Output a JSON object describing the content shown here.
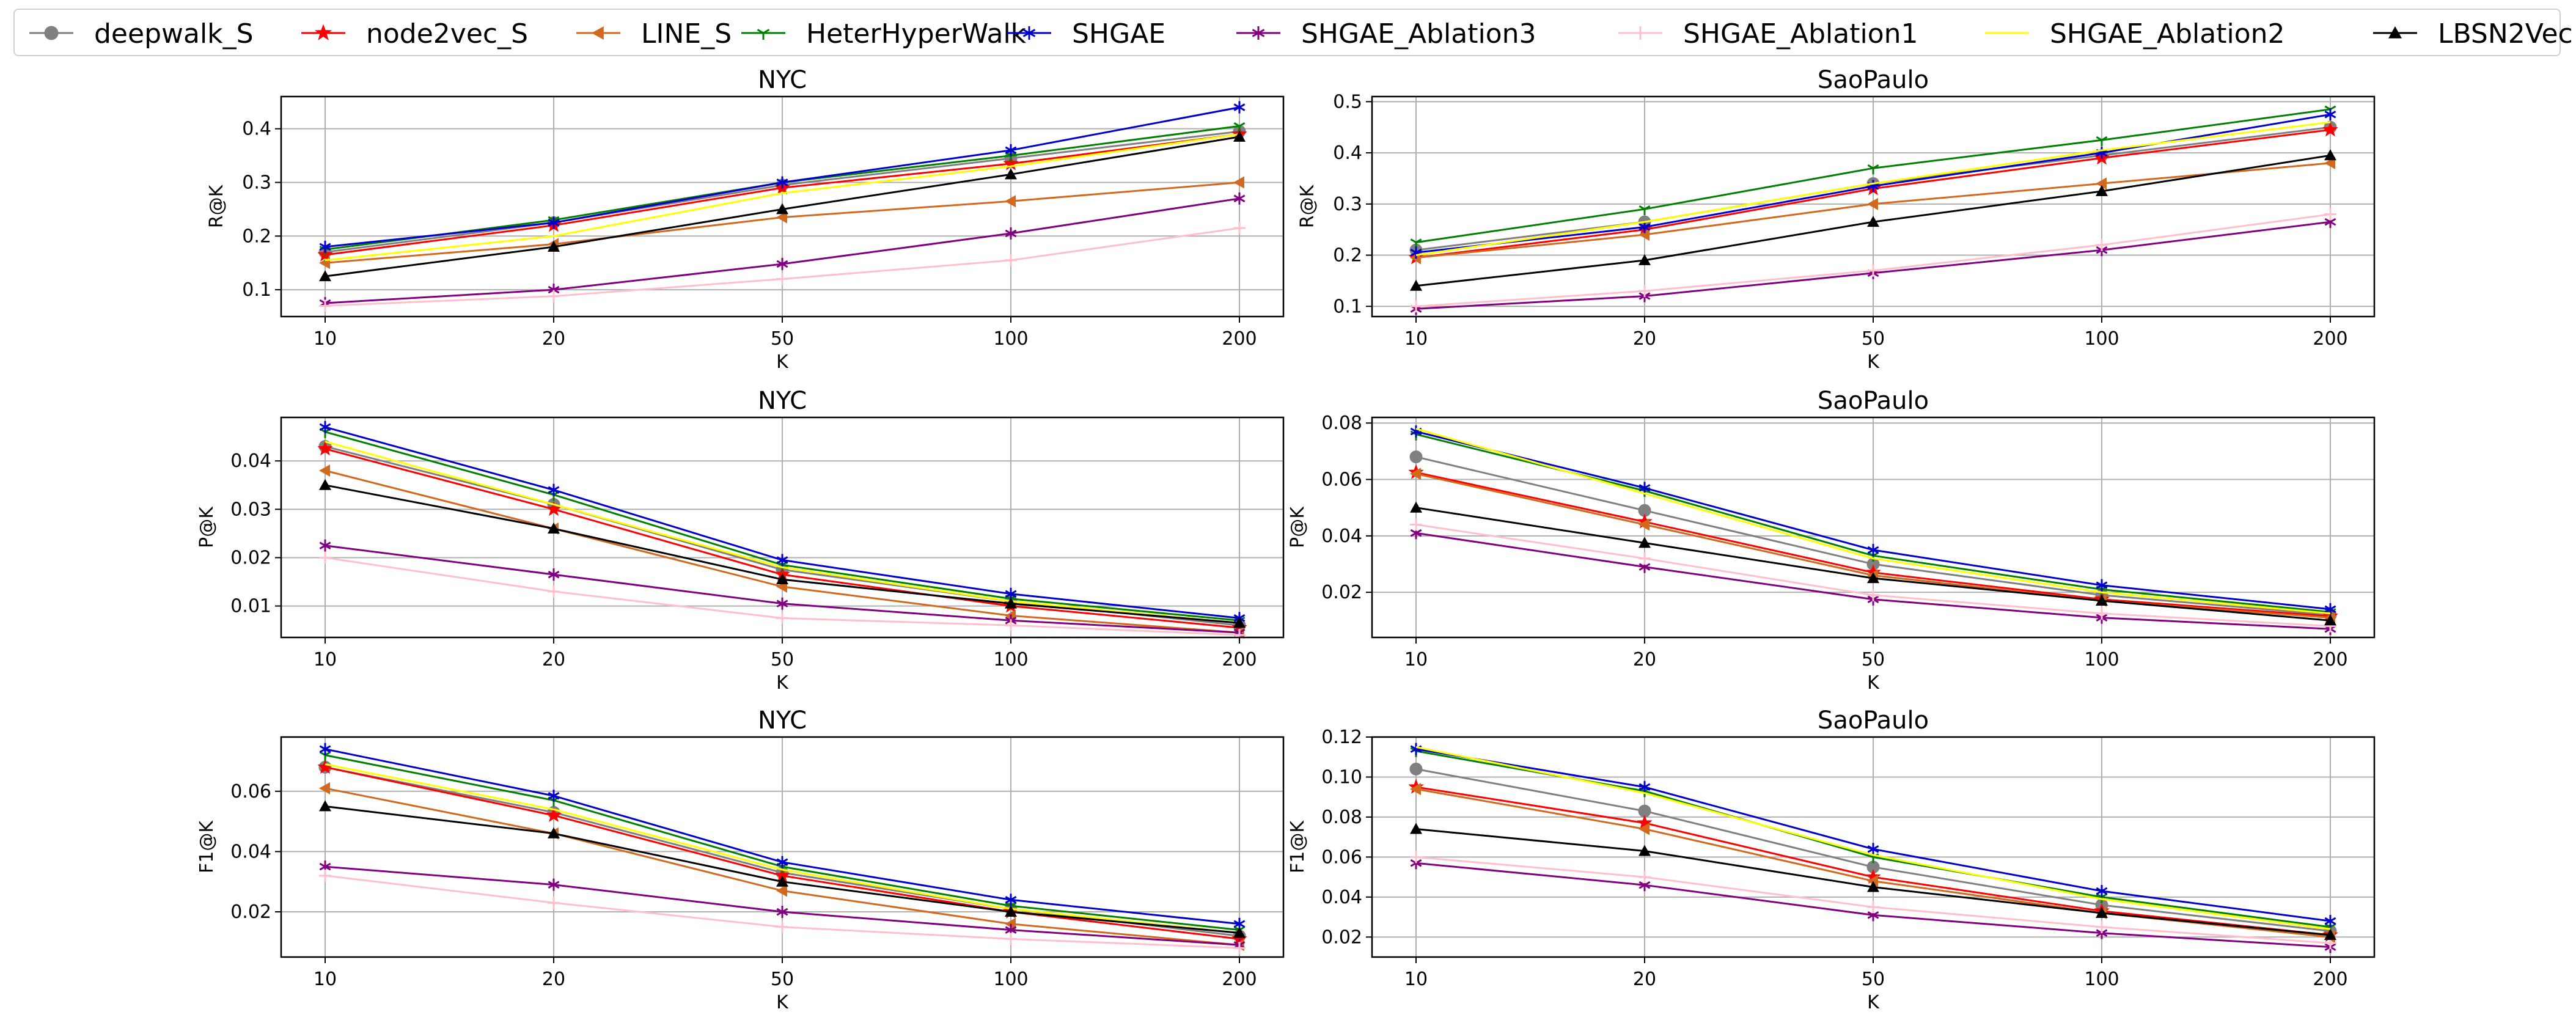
{
  "chart_data": [
    {
      "type": "line",
      "title": "NYC",
      "xlabel": "K",
      "ylabel": "R@K",
      "categories": [
        "10",
        "20",
        "50",
        "100",
        "200"
      ],
      "ylim": [
        0.05,
        0.46
      ],
      "yticks": [
        0.1,
        0.2,
        0.3,
        0.4
      ],
      "yticklabels": [
        "0.1",
        "0.2",
        "0.3",
        "0.4"
      ],
      "grid": true,
      "series": [
        {
          "name": "deepwalk_S",
          "values": [
            0.17,
            0.225,
            0.295,
            0.345,
            0.395
          ]
        },
        {
          "name": "node2vec_S",
          "values": [
            0.165,
            0.22,
            0.29,
            0.335,
            0.39
          ]
        },
        {
          "name": "LINE_S",
          "values": [
            0.15,
            0.185,
            0.235,
            0.265,
            0.3
          ]
        },
        {
          "name": "HeterHyperWalk",
          "values": [
            0.175,
            0.23,
            0.3,
            0.35,
            0.405
          ]
        },
        {
          "name": "SHGAE",
          "values": [
            0.18,
            0.225,
            0.3,
            0.36,
            0.44
          ]
        },
        {
          "name": "SHGAE_Ablation3",
          "values": [
            0.075,
            0.1,
            0.148,
            0.205,
            0.27
          ]
        },
        {
          "name": "SHGAE_Ablation1",
          "values": [
            0.07,
            0.088,
            0.12,
            0.155,
            0.215
          ]
        },
        {
          "name": "SHGAE_Ablation2",
          "values": [
            0.155,
            0.2,
            0.28,
            0.33,
            0.39
          ]
        },
        {
          "name": "LBSN2Vec",
          "values": [
            0.125,
            0.18,
            0.25,
            0.315,
            0.385
          ]
        }
      ]
    },
    {
      "type": "line",
      "title": "SaoPaulo",
      "xlabel": "K",
      "ylabel": "R@K",
      "categories": [
        "10",
        "20",
        "50",
        "100",
        "200"
      ],
      "ylim": [
        0.08,
        0.51
      ],
      "yticks": [
        0.1,
        0.2,
        0.3,
        0.4,
        0.5
      ],
      "yticklabels": [
        "0.1",
        "0.2",
        "0.3",
        "0.4",
        "0.5"
      ],
      "grid": true,
      "series": [
        {
          "name": "deepwalk_S",
          "values": [
            0.21,
            0.265,
            0.34,
            0.395,
            0.45
          ]
        },
        {
          "name": "node2vec_S",
          "values": [
            0.195,
            0.25,
            0.33,
            0.39,
            0.445
          ]
        },
        {
          "name": "LINE_S",
          "values": [
            0.195,
            0.24,
            0.3,
            0.34,
            0.38
          ]
        },
        {
          "name": "HeterHyperWalk",
          "values": [
            0.225,
            0.29,
            0.37,
            0.425,
            0.485
          ]
        },
        {
          "name": "SHGAE",
          "values": [
            0.205,
            0.255,
            0.335,
            0.4,
            0.475
          ]
        },
        {
          "name": "SHGAE_Ablation3",
          "values": [
            0.095,
            0.12,
            0.165,
            0.21,
            0.265
          ]
        },
        {
          "name": "SHGAE_Ablation1",
          "values": [
            0.1,
            0.13,
            0.17,
            0.22,
            0.28
          ]
        },
        {
          "name": "SHGAE_Ablation2",
          "values": [
            0.2,
            0.265,
            0.34,
            0.405,
            0.46
          ]
        },
        {
          "name": "LBSN2Vec",
          "values": [
            0.14,
            0.19,
            0.265,
            0.325,
            0.395
          ]
        }
      ]
    },
    {
      "type": "line",
      "title": "NYC",
      "xlabel": "K",
      "ylabel": "P@K",
      "categories": [
        "10",
        "20",
        "50",
        "100",
        "200"
      ],
      "ylim": [
        0.0035,
        0.049
      ],
      "yticks": [
        0.01,
        0.02,
        0.03,
        0.04
      ],
      "yticklabels": [
        "0.01",
        "0.02",
        "0.03",
        "0.04"
      ],
      "grid": true,
      "series": [
        {
          "name": "deepwalk_S",
          "values": [
            0.043,
            0.031,
            0.0175,
            0.011,
            0.006
          ]
        },
        {
          "name": "node2vec_S",
          "values": [
            0.0425,
            0.03,
            0.0165,
            0.01,
            0.0055
          ]
        },
        {
          "name": "LINE_S",
          "values": [
            0.038,
            0.026,
            0.014,
            0.008,
            0.0045
          ]
        },
        {
          "name": "HeterHyperWalk",
          "values": [
            0.046,
            0.033,
            0.0185,
            0.0115,
            0.007
          ]
        },
        {
          "name": "SHGAE",
          "values": [
            0.047,
            0.034,
            0.0195,
            0.0125,
            0.0075
          ]
        },
        {
          "name": "SHGAE_Ablation3",
          "values": [
            0.0225,
            0.0165,
            0.0105,
            0.007,
            0.0045
          ]
        },
        {
          "name": "SHGAE_Ablation1",
          "values": [
            0.02,
            0.013,
            0.0075,
            0.006,
            0.004
          ]
        },
        {
          "name": "SHGAE_Ablation2",
          "values": [
            0.044,
            0.031,
            0.018,
            0.011,
            0.0065
          ]
        },
        {
          "name": "LBSN2Vec",
          "values": [
            0.035,
            0.026,
            0.0155,
            0.0105,
            0.0065
          ]
        }
      ]
    },
    {
      "type": "line",
      "title": "SaoPaulo",
      "xlabel": "K",
      "ylabel": "P@K",
      "categories": [
        "10",
        "20",
        "50",
        "100",
        "200"
      ],
      "ylim": [
        0.004,
        0.082
      ],
      "yticks": [
        0.02,
        0.04,
        0.06,
        0.08
      ],
      "yticklabels": [
        "0.02",
        "0.04",
        "0.06",
        "0.08"
      ],
      "grid": true,
      "series": [
        {
          "name": "deepwalk_S",
          "values": [
            0.068,
            0.049,
            0.03,
            0.019,
            0.012
          ]
        },
        {
          "name": "node2vec_S",
          "values": [
            0.0625,
            0.045,
            0.027,
            0.0175,
            0.0115
          ]
        },
        {
          "name": "LINE_S",
          "values": [
            0.062,
            0.044,
            0.026,
            0.017,
            0.011
          ]
        },
        {
          "name": "HeterHyperWalk",
          "values": [
            0.076,
            0.056,
            0.033,
            0.021,
            0.013
          ]
        },
        {
          "name": "SHGAE",
          "values": [
            0.077,
            0.057,
            0.035,
            0.0225,
            0.014
          ]
        },
        {
          "name": "SHGAE_Ablation3",
          "values": [
            0.041,
            0.029,
            0.0175,
            0.011,
            0.007
          ]
        },
        {
          "name": "SHGAE_Ablation1",
          "values": [
            0.044,
            0.032,
            0.019,
            0.0125,
            0.008
          ]
        },
        {
          "name": "SHGAE_Ablation2",
          "values": [
            0.078,
            0.055,
            0.032,
            0.02,
            0.0125
          ]
        },
        {
          "name": "LBSN2Vec",
          "values": [
            0.05,
            0.0375,
            0.025,
            0.017,
            0.01
          ]
        }
      ]
    },
    {
      "type": "line",
      "title": "NYC",
      "xlabel": "K",
      "ylabel": "F1@K",
      "categories": [
        "10",
        "20",
        "50",
        "100",
        "200"
      ],
      "ylim": [
        0.005,
        0.078
      ],
      "yticks": [
        0.02,
        0.04,
        0.06
      ],
      "yticklabels": [
        "0.02",
        "0.04",
        "0.06"
      ],
      "grid": true,
      "series": [
        {
          "name": "deepwalk_S",
          "values": [
            0.068,
            0.053,
            0.033,
            0.021,
            0.012
          ]
        },
        {
          "name": "node2vec_S",
          "values": [
            0.068,
            0.052,
            0.032,
            0.02,
            0.011
          ]
        },
        {
          "name": "LINE_S",
          "values": [
            0.061,
            0.046,
            0.027,
            0.016,
            0.009
          ]
        },
        {
          "name": "HeterHyperWalk",
          "values": [
            0.072,
            0.057,
            0.035,
            0.022,
            0.014
          ]
        },
        {
          "name": "SHGAE",
          "values": [
            0.074,
            0.0585,
            0.0365,
            0.024,
            0.016
          ]
        },
        {
          "name": "SHGAE_Ablation3",
          "values": [
            0.035,
            0.029,
            0.02,
            0.014,
            0.009
          ]
        },
        {
          "name": "SHGAE_Ablation1",
          "values": [
            0.032,
            0.023,
            0.015,
            0.011,
            0.008
          ]
        },
        {
          "name": "SHGAE_Ablation2",
          "values": [
            0.069,
            0.054,
            0.034,
            0.021,
            0.013
          ]
        },
        {
          "name": "LBSN2Vec",
          "values": [
            0.055,
            0.046,
            0.03,
            0.02,
            0.013
          ]
        }
      ]
    },
    {
      "type": "line",
      "title": "SaoPaulo",
      "xlabel": "K",
      "ylabel": "F1@K",
      "categories": [
        "10",
        "20",
        "50",
        "100",
        "200"
      ],
      "ylim": [
        0.01,
        0.12
      ],
      "yticks": [
        0.02,
        0.04,
        0.06,
        0.08,
        0.1,
        0.12
      ],
      "yticklabels": [
        "0.02",
        "0.04",
        "0.06",
        "0.08",
        "0.10",
        "0.12"
      ],
      "grid": true,
      "series": [
        {
          "name": "deepwalk_S",
          "values": [
            0.104,
            0.083,
            0.055,
            0.036,
            0.023
          ]
        },
        {
          "name": "node2vec_S",
          "values": [
            0.095,
            0.077,
            0.05,
            0.033,
            0.021
          ]
        },
        {
          "name": "LINE_S",
          "values": [
            0.094,
            0.074,
            0.048,
            0.032,
            0.02
          ]
        },
        {
          "name": "HeterHyperWalk",
          "values": [
            0.113,
            0.093,
            0.06,
            0.04,
            0.025
          ]
        },
        {
          "name": "SHGAE",
          "values": [
            0.114,
            0.095,
            0.064,
            0.043,
            0.028
          ]
        },
        {
          "name": "SHGAE_Ablation3",
          "values": [
            0.057,
            0.046,
            0.031,
            0.022,
            0.015
          ]
        },
        {
          "name": "SHGAE_Ablation1",
          "values": [
            0.06,
            0.05,
            0.035,
            0.025,
            0.017
          ]
        },
        {
          "name": "SHGAE_Ablation2",
          "values": [
            0.115,
            0.092,
            0.061,
            0.039,
            0.024
          ]
        },
        {
          "name": "LBSN2Vec",
          "values": [
            0.074,
            0.063,
            0.045,
            0.032,
            0.021
          ]
        }
      ]
    }
  ],
  "legend": {
    "placement": "top",
    "entries": [
      {
        "name": "deepwalk_S",
        "color": "#808080",
        "marker": "circle"
      },
      {
        "name": "node2vec_S",
        "color": "#ff0000",
        "marker": "star"
      },
      {
        "name": "LINE_S",
        "color": "#d2691e",
        "marker": "triangle-left"
      },
      {
        "name": "HeterHyperWalk",
        "color": "#008000",
        "marker": "tri-down"
      },
      {
        "name": "SHGAE",
        "color": "#0000cd",
        "marker": "tri-star"
      },
      {
        "name": "SHGAE_Ablation3",
        "color": "#800080",
        "marker": "tri-star"
      },
      {
        "name": "SHGAE_Ablation1",
        "color": "#ffc0cb",
        "marker": "plus"
      },
      {
        "name": "SHGAE_Ablation2",
        "color": "#ffff00",
        "marker": "none"
      },
      {
        "name": "LBSN2Vec",
        "color": "#000000",
        "marker": "triangle-up"
      }
    ]
  }
}
